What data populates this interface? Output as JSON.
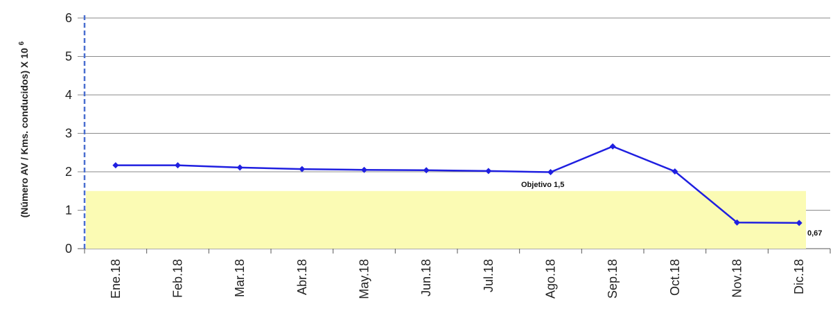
{
  "chart_data": {
    "type": "line",
    "categories": [
      "Ene.18",
      "Feb.18",
      "Mar.18",
      "Abr.18",
      "May.18",
      "Jun.18",
      "Jul.18",
      "Ago.18",
      "Sep.18",
      "Oct.18",
      "Nov.18",
      "Dic.18"
    ],
    "series": [
      {
        "values": [
          2.17,
          2.17,
          2.11,
          2.07,
          2.05,
          2.04,
          2.02,
          1.99,
          2.66,
          2.01,
          0.68,
          0.67
        ]
      }
    ],
    "target": {
      "label": "Objetivo 1,5",
      "value": 1.5
    },
    "ylabel": "(Número AV / Kms. conducidos) X 10",
    "ylabel_exponent": "6",
    "ylim": [
      0,
      6
    ],
    "yticks": [
      0,
      1,
      2,
      3,
      4,
      5,
      6
    ],
    "grid": true,
    "last_point_label": "0,67",
    "colors": {
      "line": "#1f1fe0",
      "target_band": "#fbfbb4",
      "grid": "#8a8a8a",
      "dashed_axis": "#4a6fd0"
    }
  }
}
